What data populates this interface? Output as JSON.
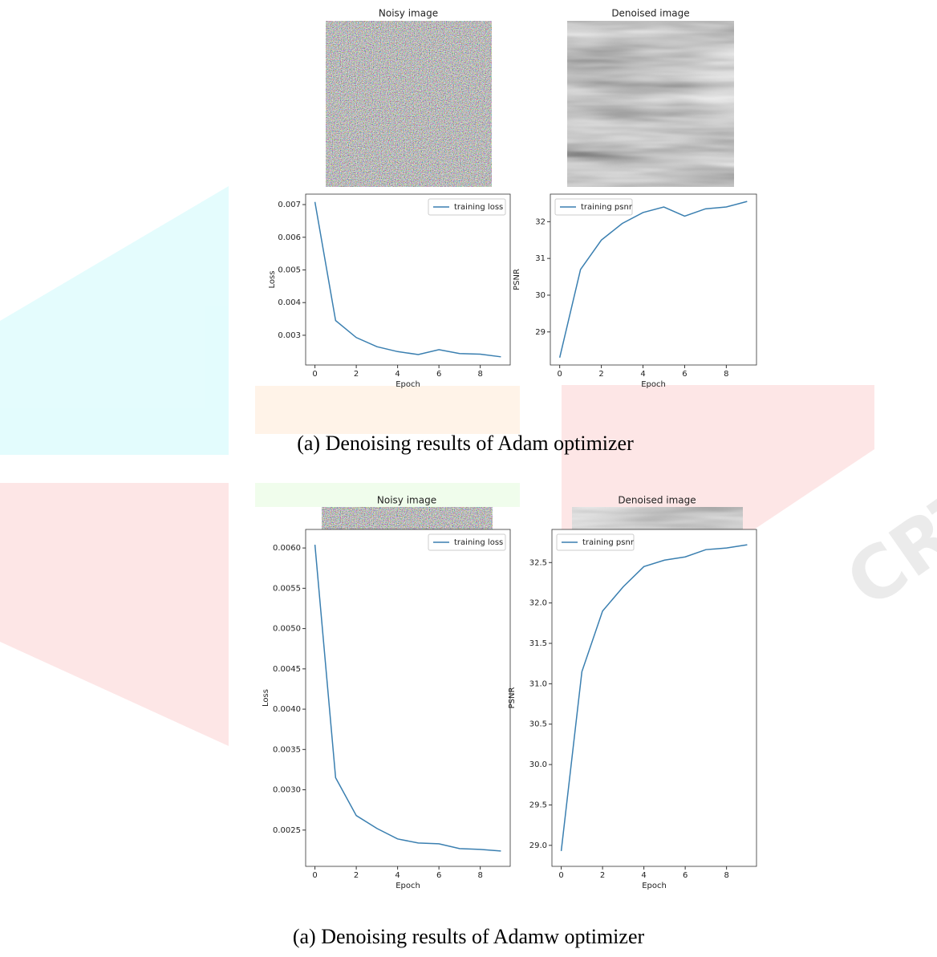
{
  "images": [
    {
      "title": "Noisy image"
    },
    {
      "title": "Denoised image"
    },
    {
      "title": "Noisy image"
    },
    {
      "title": "Denoised image"
    }
  ],
  "captions": [
    "(a) Denoising results of Adam optimizer",
    "(a) Denoising results of Adamw optimizer"
  ],
  "chart_data": [
    {
      "type": "line",
      "xlabel": "Epoch",
      "ylabel": "Loss",
      "x": [
        0,
        1,
        2,
        3,
        4,
        5,
        6,
        7,
        8,
        9
      ],
      "series": [
        {
          "name": "training loss",
          "color": "#3a7fb0",
          "values": [
            0.00708,
            0.00345,
            0.00293,
            0.00265,
            0.0025,
            0.00241,
            0.00256,
            0.00244,
            0.00242,
            0.00234
          ]
        }
      ],
      "xlim": [
        -0.45,
        9.45
      ],
      "xticks": [
        0,
        2,
        4,
        6,
        8
      ],
      "ylim": [
        0.00209,
        0.00732
      ],
      "yticks": [
        0.003,
        0.004,
        0.005,
        0.006,
        0.007
      ],
      "legend": "upper right"
    },
    {
      "type": "line",
      "xlabel": "Epoch",
      "ylabel": "PSNR",
      "x": [
        0,
        1,
        2,
        3,
        4,
        5,
        6,
        7,
        8,
        9
      ],
      "series": [
        {
          "name": "training psnr",
          "color": "#3a7fb0",
          "values": [
            28.3,
            30.7,
            31.5,
            31.95,
            32.25,
            32.4,
            32.15,
            32.35,
            32.4,
            32.55
          ]
        }
      ],
      "xlim": [
        -0.45,
        9.45
      ],
      "xticks": [
        0,
        2,
        4,
        6,
        8
      ],
      "ylim": [
        28.1,
        32.75
      ],
      "yticks": [
        29,
        30,
        31,
        32
      ],
      "legend": "upper left"
    },
    {
      "type": "line",
      "xlabel": "Epoch",
      "ylabel": "Loss",
      "x": [
        0,
        1,
        2,
        3,
        4,
        5,
        6,
        7,
        8,
        9
      ],
      "series": [
        {
          "name": "training loss",
          "color": "#3a7fb0",
          "values": [
            0.00604,
            0.00315,
            0.00268,
            0.00252,
            0.00239,
            0.00234,
            0.00233,
            0.00227,
            0.00226,
            0.00224
          ]
        }
      ],
      "xlim": [
        -0.45,
        9.45
      ],
      "xticks": [
        0,
        2,
        4,
        6,
        8
      ],
      "ylim": [
        0.00205,
        0.00623
      ],
      "yticks": [
        {
          "value": 0.0025,
          "label": "0.0025"
        },
        {
          "value": 0.003,
          "label": "0.0030"
        },
        {
          "value": 0.0035,
          "label": "0.0035"
        },
        {
          "value": 0.004,
          "label": "0.0040"
        },
        {
          "value": 0.0045,
          "label": "0.0045"
        },
        {
          "value": 0.005,
          "label": "0.0050"
        },
        {
          "value": 0.0055,
          "label": "0.0055"
        },
        {
          "value": 0.006,
          "label": "0.0060"
        }
      ],
      "legend": "upper right"
    },
    {
      "type": "line",
      "xlabel": "Epoch",
      "ylabel": "PSNR",
      "x": [
        0,
        1,
        2,
        3,
        4,
        5,
        6,
        7,
        8,
        9
      ],
      "series": [
        {
          "name": "training psnr",
          "color": "#3a7fb0",
          "values": [
            28.93,
            31.15,
            31.9,
            32.2,
            32.45,
            32.53,
            32.57,
            32.66,
            32.68,
            32.72
          ]
        }
      ],
      "xlim": [
        -0.45,
        9.45
      ],
      "xticks": [
        0,
        2,
        4,
        6,
        8
      ],
      "ylim": [
        28.74,
        32.91
      ],
      "yticks": [
        {
          "value": 29,
          "label": "29.0"
        },
        {
          "value": 29.5,
          "label": "29.5"
        },
        {
          "value": 30,
          "label": "30.0"
        },
        {
          "value": 30.5,
          "label": "30.5"
        },
        {
          "value": 31,
          "label": "31.0"
        },
        {
          "value": 31.5,
          "label": "31.5"
        },
        {
          "value": 32,
          "label": "32.0"
        },
        {
          "value": 32.5,
          "label": "32.5"
        }
      ],
      "legend": "upper left"
    }
  ]
}
